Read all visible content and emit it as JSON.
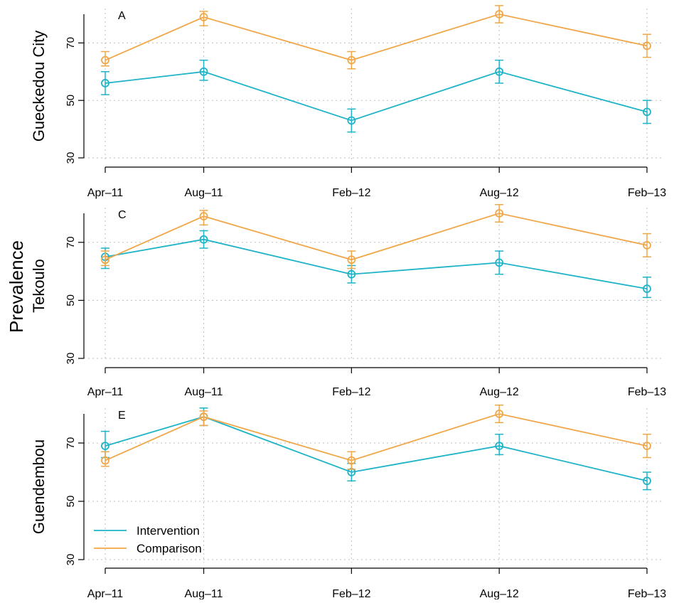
{
  "colors": {
    "intervention": "#1fb3c8",
    "comparison": "#f0a74a",
    "axis": "#000000",
    "grid": "#bdbdbd"
  },
  "figure": {
    "ylabel": "Prevalence"
  },
  "chart_data": [
    {
      "type": "line",
      "panel_letter": "A",
      "ylabel": "Gueckedou City",
      "x": [
        "2011-04",
        "2011-08",
        "2012-02",
        "2012-08",
        "2013-02"
      ],
      "x_tick_labels": [
        "Apr–11",
        "Aug–11",
        "Feb–12",
        "Aug–12",
        "Feb–13"
      ],
      "ylim": [
        30,
        80
      ],
      "y_ticks": [
        30,
        50,
        70
      ],
      "grid": true,
      "series": [
        {
          "name": "Intervention",
          "values": [
            56,
            60,
            43,
            60,
            46
          ],
          "lower": [
            52,
            57,
            39,
            56,
            42
          ],
          "upper": [
            60,
            64,
            47,
            64,
            50
          ]
        },
        {
          "name": "Comparison",
          "values": [
            64,
            79,
            64,
            80,
            69
          ],
          "lower": [
            62,
            76,
            61,
            77,
            65
          ],
          "upper": [
            67,
            81,
            67,
            83,
            73
          ]
        }
      ]
    },
    {
      "type": "line",
      "panel_letter": "C",
      "ylabel": "Tekoulo",
      "x": [
        "2011-04",
        "2011-08",
        "2012-02",
        "2012-08",
        "2013-02"
      ],
      "x_tick_labels": [
        "Apr–11",
        "Aug–11",
        "Feb–12",
        "Aug–12",
        "Feb–13"
      ],
      "ylim": [
        30,
        80
      ],
      "y_ticks": [
        30,
        50,
        70
      ],
      "grid": true,
      "series": [
        {
          "name": "Intervention",
          "values": [
            65,
            71,
            59,
            63,
            54
          ],
          "lower": [
            61,
            68,
            56,
            59,
            51
          ],
          "upper": [
            68,
            74,
            62,
            67,
            58
          ]
        },
        {
          "name": "Comparison",
          "values": [
            64,
            79,
            64,
            80,
            69
          ],
          "lower": [
            62,
            76,
            61,
            77,
            65
          ],
          "upper": [
            67,
            81,
            67,
            83,
            73
          ]
        }
      ]
    },
    {
      "type": "line",
      "panel_letter": "E",
      "ylabel": "Guendembou",
      "x": [
        "2011-04",
        "2011-08",
        "2012-02",
        "2012-08",
        "2013-02"
      ],
      "x_tick_labels": [
        "Apr–11",
        "Aug–11",
        "Feb–12",
        "Aug–12",
        "Feb–13"
      ],
      "ylim": [
        30,
        80
      ],
      "y_ticks": [
        30,
        50,
        70
      ],
      "grid": true,
      "legend": {
        "position": "bottom-left",
        "entries": [
          "Intervention",
          "Comparison"
        ]
      },
      "series": [
        {
          "name": "Intervention",
          "values": [
            69,
            79,
            60,
            69,
            57
          ],
          "lower": [
            65,
            76,
            57,
            66,
            54
          ],
          "upper": [
            74,
            82,
            63,
            73,
            60
          ]
        },
        {
          "name": "Comparison",
          "values": [
            64,
            79,
            64,
            80,
            69
          ],
          "lower": [
            62,
            76,
            61,
            77,
            65
          ],
          "upper": [
            67,
            81,
            67,
            83,
            73
          ]
        }
      ]
    }
  ]
}
